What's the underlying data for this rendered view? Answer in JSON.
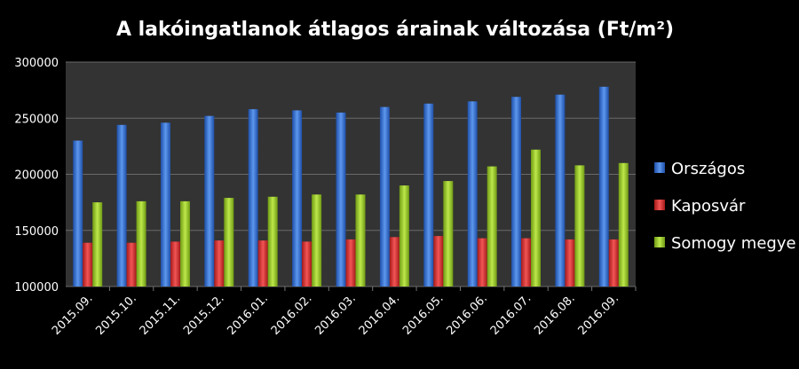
{
  "chart_data": {
    "type": "bar",
    "title": "A lakóingatlanok átlagos árainak változása (Ft/m²)",
    "xlabel": "",
    "ylabel": "",
    "categories": [
      "2015.09.",
      "2015.10.",
      "2015.11.",
      "2015.12.",
      "2016.01.",
      "2016.02.",
      "2016.03.",
      "2016.04.",
      "2016.05.",
      "2016.06.",
      "2016.07.",
      "2016.08.",
      "2016.09."
    ],
    "series": [
      {
        "name": "Országos",
        "color": "#3a78d8",
        "values": [
          230000,
          244000,
          246000,
          252000,
          258000,
          257000,
          255000,
          260000,
          263000,
          265000,
          269000,
          271000,
          278000
        ]
      },
      {
        "name": "Kaposvár",
        "color": "#e03030",
        "values": [
          139000,
          139000,
          140000,
          141000,
          141000,
          140000,
          142000,
          144000,
          145000,
          143000,
          143000,
          142000,
          142000
        ]
      },
      {
        "name": "Somogy megye",
        "color": "#9ccc2c",
        "values": [
          175000,
          176000,
          176000,
          179000,
          180000,
          182000,
          182000,
          190000,
          194000,
          207000,
          222000,
          208000,
          210000
        ]
      }
    ],
    "ylim": [
      100000,
      300000
    ],
    "yticks": [
      "300000",
      "250000",
      "200000",
      "150000",
      "100000"
    ],
    "grid": true,
    "legend_position": "right",
    "plot_background": "#333333"
  }
}
